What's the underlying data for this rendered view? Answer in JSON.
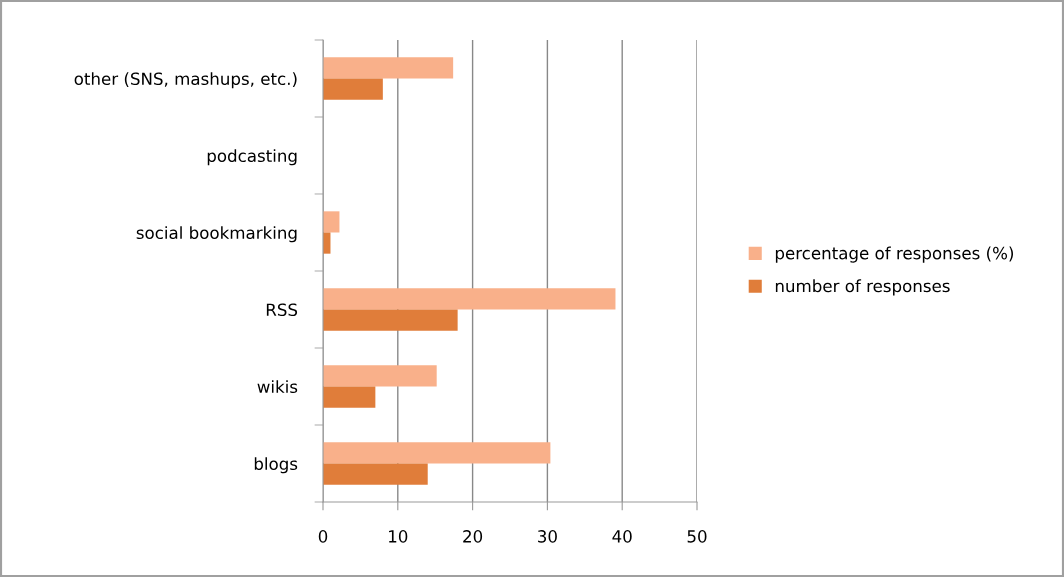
{
  "chart_data": {
    "type": "bar",
    "orientation": "horizontal",
    "categories": [
      "other (SNS, mashups, etc.)",
      "podcasting",
      "social bookmarking",
      "RSS",
      "wikis",
      "blogs"
    ],
    "series": [
      {
        "name": "percentage of responses (%)",
        "color": "#f9b08a",
        "values": [
          17.4,
          0,
          2.2,
          39.1,
          15.2,
          30.4
        ]
      },
      {
        "name": "number of responses",
        "color": "#e07d3a",
        "values": [
          8,
          0,
          1,
          18,
          7,
          14
        ]
      }
    ],
    "xlim": [
      0,
      50
    ],
    "xticks": [
      0,
      10,
      20,
      30,
      40,
      50
    ],
    "grid": "x",
    "legend": "right"
  }
}
